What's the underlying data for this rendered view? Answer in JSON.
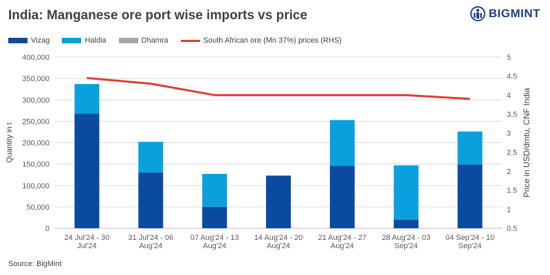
{
  "title": "India: Manganese ore port wise imports vs price",
  "logo": {
    "text": "BIGMINT"
  },
  "source": "Source: BigMint",
  "colors": {
    "vizag": "#0a4a9f",
    "haldia": "#0aa0de",
    "dhamra": "#a6a6a6",
    "price": "#e03c31",
    "logo": "#1e3f8f"
  },
  "legend": [
    {
      "key": "vizag",
      "label": "Vizag",
      "kind": "bar"
    },
    {
      "key": "haldia",
      "label": "Haldia",
      "kind": "bar"
    },
    {
      "key": "dhamra",
      "label": "Dhamra",
      "kind": "bar"
    },
    {
      "key": "price",
      "label": "South African ore (Mn 37%) prices (RHS)",
      "kind": "line"
    }
  ],
  "chart_data": {
    "type": "bar",
    "stacked": true,
    "categories": [
      [
        "24 Jul'24 - 30",
        "Jul'24"
      ],
      [
        "31 Jul'24 - 06",
        "Aug'24"
      ],
      [
        "07 Aug'24 - 13",
        "Aug'24"
      ],
      [
        "14 Aug'24 - 20",
        "Aug'24"
      ],
      [
        "21 Aug'24 - 27",
        "Aug'24"
      ],
      [
        "28 Aug'24 - 03",
        "Sep'24"
      ],
      [
        "04 Sep'24 - 10",
        "Sep'24"
      ]
    ],
    "series": [
      {
        "name": "Vizag",
        "key": "vizag",
        "axis": "left",
        "values": [
          268000,
          130000,
          50000,
          123000,
          146000,
          20000,
          149000
        ]
      },
      {
        "name": "Haldia",
        "key": "haldia",
        "axis": "left",
        "values": [
          69000,
          72000,
          77000,
          0,
          107000,
          127000,
          77000
        ]
      },
      {
        "name": "Dhamra",
        "key": "dhamra",
        "axis": "left",
        "values": [
          0,
          0,
          0,
          0,
          0,
          0,
          0
        ]
      },
      {
        "name": "South African ore (Mn 37%) prices (RHS)",
        "key": "price",
        "axis": "right",
        "type": "line",
        "values": [
          4.45,
          4.3,
          4.0,
          4.0,
          4.0,
          4.0,
          3.9
        ]
      }
    ],
    "ylabel": "Quantity in t",
    "y2label": "Price in USD/dmtu, CNF India",
    "ylim": [
      0,
      400000
    ],
    "y2lim": [
      0.5,
      5
    ],
    "yticks": [
      0,
      50000,
      100000,
      150000,
      200000,
      250000,
      300000,
      350000,
      400000
    ],
    "ytick_labels": [
      "0",
      "50,000",
      "100,000",
      "150,000",
      "200,000",
      "250,000",
      "300,000",
      "350,000",
      "400,000"
    ],
    "y2ticks": [
      0.5,
      1,
      1.5,
      2,
      2.5,
      3,
      3.5,
      4,
      4.5,
      5
    ],
    "y2tick_labels": [
      "0.5",
      "1",
      "1.5",
      "2",
      "2.5",
      "3",
      "3.5",
      "4",
      "4.5",
      "5"
    ],
    "grid": true,
    "legend_position": "top-left"
  }
}
